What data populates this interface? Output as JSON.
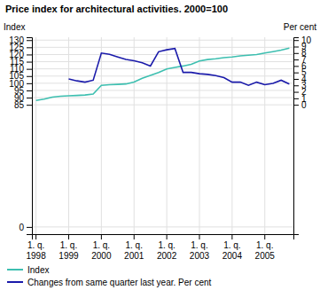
{
  "chart_data": {
    "type": "line",
    "title": "Price index for architectural activities. 2000=100",
    "ylabel": "Index",
    "y2label": "Per cent",
    "categories": [
      "1. q.\n1998",
      null,
      null,
      null,
      "1. q.\n1999",
      null,
      null,
      null,
      "1. q.\n2000",
      null,
      null,
      null,
      "1. q.\n2001",
      null,
      null,
      null,
      "1. q.\n2002",
      null,
      null,
      null,
      "1. q.\n2003",
      null,
      null,
      null,
      "1. q.\n2004",
      null,
      null,
      null,
      "1. q.\n2005",
      null,
      null,
      null
    ],
    "series": [
      {
        "name": "Index",
        "color": "#3dbfb0",
        "axis": "y",
        "values": [
          88.0,
          89.0,
          90.3,
          91.0,
          91.3,
          91.5,
          91.8,
          92.5,
          98.5,
          99.0,
          99.2,
          99.5,
          100.8,
          103.5,
          105.5,
          107.5,
          110.0,
          111.0,
          112.0,
          113.2,
          115.5,
          116.5,
          117.0,
          117.8,
          118.3,
          119.0,
          119.5,
          120.0,
          121.0,
          122.0,
          123.0,
          124.5
        ]
      },
      {
        "name": "Changes from same quarter last year. Per cent",
        "color": "#1a1aaa",
        "axis": "y2",
        "values": [
          null,
          null,
          null,
          null,
          4.0,
          3.7,
          3.5,
          3.8,
          8.0,
          7.8,
          7.4,
          7.0,
          6.8,
          6.5,
          6.0,
          8.2,
          8.5,
          8.7,
          5.0,
          5.0,
          4.8,
          4.7,
          4.5,
          4.2,
          3.5,
          3.5,
          3.0,
          3.5,
          3.1,
          3.3,
          3.8,
          3.2
        ]
      }
    ],
    "ylim": [
      -5,
      132
    ],
    "yticks": [
      0,
      85,
      90,
      95,
      100,
      105,
      110,
      115,
      120,
      125,
      130
    ],
    "y2lim": [
      -20,
      10.44
    ],
    "y2ticks": [
      0,
      1,
      2,
      3,
      4,
      5,
      6,
      7,
      8,
      9,
      10
    ],
    "grid": true,
    "legend": "bottom"
  }
}
